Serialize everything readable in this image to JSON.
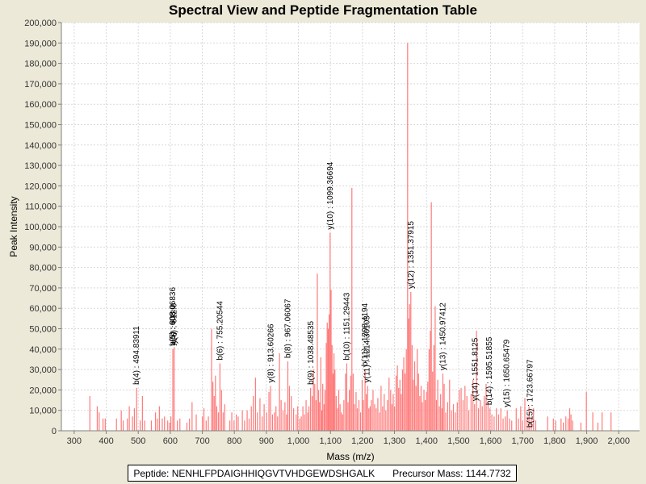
{
  "chart_data": {
    "type": "bar",
    "title": "Spectral View and Peptide Fragmentation Table",
    "xlabel": "Mass (m/z)",
    "ylabel": "Peak Intensity",
    "xlim": [
      260,
      2065
    ],
    "ylim": [
      0,
      200000
    ],
    "x_ticks": [
      300,
      400,
      500,
      600,
      700,
      800,
      900,
      1000,
      1100,
      1200,
      1300,
      1400,
      1500,
      1600,
      1700,
      1800,
      1900,
      2000
    ],
    "x_tick_labels": [
      "300",
      "400",
      "500",
      "600",
      "700",
      "800",
      "900",
      "1,000",
      "1,100",
      "1,200",
      "1,300",
      "1,400",
      "1,500",
      "1,600",
      "1,700",
      "1,800",
      "1,900",
      "2,000"
    ],
    "y_ticks": [
      0,
      10000,
      20000,
      30000,
      40000,
      50000,
      60000,
      70000,
      80000,
      90000,
      100000,
      110000,
      120000,
      130000,
      140000,
      150000,
      160000,
      170000,
      180000,
      190000,
      200000
    ],
    "y_tick_labels": [
      "0",
      "10,000",
      "20,000",
      "30,000",
      "40,000",
      "50,000",
      "60,000",
      "70,000",
      "80,000",
      "90,000",
      "100,000",
      "110,000",
      "120,000",
      "130,000",
      "140,000",
      "150,000",
      "160,000",
      "170,000",
      "180,000",
      "190,000",
      "200,000"
    ],
    "grid": true,
    "bar_color": "#ff7a7a",
    "peaks": [
      [
        349,
        17000
      ],
      [
        372,
        12000
      ],
      [
        378,
        9000
      ],
      [
        390,
        6000
      ],
      [
        397,
        6000
      ],
      [
        432,
        6000
      ],
      [
        447,
        10000
      ],
      [
        453,
        5000
      ],
      [
        466,
        6000
      ],
      [
        472,
        12000
      ],
      [
        482,
        7000
      ],
      [
        488,
        11000
      ],
      [
        495,
        21000
      ],
      [
        506,
        5000
      ],
      [
        513,
        17000
      ],
      [
        520,
        5000
      ],
      [
        541,
        5000
      ],
      [
        554,
        9000
      ],
      [
        560,
        6000
      ],
      [
        566,
        12000
      ],
      [
        575,
        6000
      ],
      [
        582,
        7000
      ],
      [
        592,
        5000
      ],
      [
        598,
        4000
      ],
      [
        602,
        7000
      ],
      [
        608,
        40000
      ],
      [
        612,
        41000
      ],
      [
        622,
        5000
      ],
      [
        630,
        6000
      ],
      [
        652,
        4000
      ],
      [
        660,
        6000
      ],
      [
        668,
        14000
      ],
      [
        681,
        8000
      ],
      [
        700,
        7000
      ],
      [
        705,
        11000
      ],
      [
        712,
        5000
      ],
      [
        719,
        7000
      ],
      [
        729,
        50000
      ],
      [
        733,
        24000
      ],
      [
        737,
        17000
      ],
      [
        741,
        27000
      ],
      [
        745,
        12000
      ],
      [
        750,
        9000
      ],
      [
        755,
        33000
      ],
      [
        760,
        20000
      ],
      [
        765,
        9000
      ],
      [
        770,
        13000
      ],
      [
        786,
        5000
      ],
      [
        792,
        9000
      ],
      [
        799,
        5000
      ],
      [
        806,
        8000
      ],
      [
        812,
        7000
      ],
      [
        825,
        10000
      ],
      [
        832,
        5000
      ],
      [
        840,
        10000
      ],
      [
        846,
        6000
      ],
      [
        853,
        12000
      ],
      [
        859,
        17000
      ],
      [
        866,
        26000
      ],
      [
        872,
        9000
      ],
      [
        880,
        16000
      ],
      [
        887,
        7000
      ],
      [
        893,
        13000
      ],
      [
        901,
        9000
      ],
      [
        908,
        19000
      ],
      [
        913,
        22000
      ],
      [
        919,
        8000
      ],
      [
        925,
        9000
      ],
      [
        930,
        12000
      ],
      [
        935,
        7000
      ],
      [
        941,
        38000
      ],
      [
        946,
        15000
      ],
      [
        952,
        10000
      ],
      [
        958,
        14000
      ],
      [
        963,
        8000
      ],
      [
        967,
        34000
      ],
      [
        972,
        22000
      ],
      [
        978,
        17000
      ],
      [
        985,
        11000
      ],
      [
        993,
        8000
      ],
      [
        998,
        12000
      ],
      [
        1004,
        6000
      ],
      [
        1009,
        7000
      ],
      [
        1014,
        12000
      ],
      [
        1019,
        8000
      ],
      [
        1024,
        15000
      ],
      [
        1029,
        9000
      ],
      [
        1033,
        12000
      ],
      [
        1038,
        21000
      ],
      [
        1043,
        17000
      ],
      [
        1047,
        30000
      ],
      [
        1051,
        23000
      ],
      [
        1055,
        15000
      ],
      [
        1059,
        77000
      ],
      [
        1063,
        20000
      ],
      [
        1066,
        14000
      ],
      [
        1070,
        36000
      ],
      [
        1073,
        10000
      ],
      [
        1076,
        23000
      ],
      [
        1080,
        13000
      ],
      [
        1083,
        20000
      ],
      [
        1087,
        43000
      ],
      [
        1090,
        53000
      ],
      [
        1093,
        50000
      ],
      [
        1096,
        57000
      ],
      [
        1099,
        97000
      ],
      [
        1102,
        69000
      ],
      [
        1105,
        42000
      ],
      [
        1108,
        28000
      ],
      [
        1111,
        38000
      ],
      [
        1114,
        30000
      ],
      [
        1118,
        17000
      ],
      [
        1122,
        11000
      ],
      [
        1126,
        20000
      ],
      [
        1130,
        13000
      ],
      [
        1134,
        9000
      ],
      [
        1138,
        8000
      ],
      [
        1142,
        15000
      ],
      [
        1147,
        28000
      ],
      [
        1151,
        33000
      ],
      [
        1155,
        14000
      ],
      [
        1159,
        20000
      ],
      [
        1163,
        27000
      ],
      [
        1167,
        119000
      ],
      [
        1171,
        28000
      ],
      [
        1175,
        13000
      ],
      [
        1180,
        19000
      ],
      [
        1184,
        11000
      ],
      [
        1189,
        15000
      ],
      [
        1194,
        9000
      ],
      [
        1199,
        25000
      ],
      [
        1203,
        15000
      ],
      [
        1208,
        30000
      ],
      [
        1212,
        18000
      ],
      [
        1216,
        22000
      ],
      [
        1220,
        11000
      ],
      [
        1224,
        12000
      ],
      [
        1228,
        15000
      ],
      [
        1233,
        20000
      ],
      [
        1238,
        13000
      ],
      [
        1243,
        11000
      ],
      [
        1248,
        16000
      ],
      [
        1253,
        9000
      ],
      [
        1258,
        22000
      ],
      [
        1263,
        12000
      ],
      [
        1268,
        18000
      ],
      [
        1273,
        10000
      ],
      [
        1278,
        15000
      ],
      [
        1283,
        26000
      ],
      [
        1288,
        20000
      ],
      [
        1292,
        13000
      ],
      [
        1296,
        18000
      ],
      [
        1300,
        12000
      ],
      [
        1305,
        27000
      ],
      [
        1309,
        32000
      ],
      [
        1313,
        21000
      ],
      [
        1317,
        25000
      ],
      [
        1321,
        18000
      ],
      [
        1325,
        30000
      ],
      [
        1329,
        36000
      ],
      [
        1333,
        28000
      ],
      [
        1337,
        40000
      ],
      [
        1341,
        190000
      ],
      [
        1344,
        55000
      ],
      [
        1347,
        62000
      ],
      [
        1351,
        68000
      ],
      [
        1355,
        42000
      ],
      [
        1359,
        25000
      ],
      [
        1363,
        34000
      ],
      [
        1367,
        22000
      ],
      [
        1371,
        40000
      ],
      [
        1375,
        28000
      ],
      [
        1379,
        17000
      ],
      [
        1383,
        22000
      ],
      [
        1387,
        14000
      ],
      [
        1392,
        20000
      ],
      [
        1396,
        15000
      ],
      [
        1400,
        19000
      ],
      [
        1404,
        24000
      ],
      [
        1408,
        40000
      ],
      [
        1412,
        49000
      ],
      [
        1415,
        112000
      ],
      [
        1419,
        29000
      ],
      [
        1423,
        42000
      ],
      [
        1427,
        61000
      ],
      [
        1431,
        15000
      ],
      [
        1435,
        25000
      ],
      [
        1440,
        12000
      ],
      [
        1444,
        18000
      ],
      [
        1448,
        11000
      ],
      [
        1451,
        28000
      ],
      [
        1455,
        23000
      ],
      [
        1460,
        9000
      ],
      [
        1466,
        14000
      ],
      [
        1472,
        25000
      ],
      [
        1478,
        10000
      ],
      [
        1484,
        13000
      ],
      [
        1490,
        9000
      ],
      [
        1496,
        14000
      ],
      [
        1502,
        20000
      ],
      [
        1508,
        21000
      ],
      [
        1514,
        15000
      ],
      [
        1520,
        22000
      ],
      [
        1526,
        17000
      ],
      [
        1532,
        10000
      ],
      [
        1539,
        18000
      ],
      [
        1545,
        25000
      ],
      [
        1550,
        13000
      ],
      [
        1556,
        49000
      ],
      [
        1562,
        11000
      ],
      [
        1568,
        15000
      ],
      [
        1574,
        12000
      ],
      [
        1580,
        17000
      ],
      [
        1586,
        23000
      ],
      [
        1592,
        14000
      ],
      [
        1598,
        11000
      ],
      [
        1604,
        8000
      ],
      [
        1611,
        7000
      ],
      [
        1618,
        11000
      ],
      [
        1625,
        8000
      ],
      [
        1632,
        11000
      ],
      [
        1639,
        6000
      ],
      [
        1646,
        7000
      ],
      [
        1652,
        10000
      ],
      [
        1659,
        6000
      ],
      [
        1666,
        5000
      ],
      [
        1680,
        11000
      ],
      [
        1687,
        6000
      ],
      [
        1694,
        12000
      ],
      [
        1700,
        5000
      ],
      [
        1707,
        16000
      ],
      [
        1714,
        7000
      ],
      [
        1720,
        12000
      ],
      [
        1727,
        6000
      ],
      [
        1734,
        11000
      ],
      [
        1741,
        5000
      ],
      [
        1778,
        7000
      ],
      [
        1796,
        6000
      ],
      [
        1803,
        5000
      ],
      [
        1820,
        6000
      ],
      [
        1827,
        4000
      ],
      [
        1835,
        7000
      ],
      [
        1842,
        6000
      ],
      [
        1847,
        11000
      ],
      [
        1851,
        8000
      ],
      [
        1856,
        5000
      ],
      [
        1882,
        4000
      ],
      [
        1899,
        19000
      ],
      [
        1919,
        9000
      ],
      [
        1935,
        4000
      ],
      [
        1948,
        9000
      ],
      [
        1976,
        9000
      ]
    ],
    "annotations": [
      {
        "mz": 494.83911,
        "label": "b(4) : 494.83911"
      },
      {
        "mz": 608.0,
        "label": "b(5) : 608.0"
      },
      {
        "mz": 608.06836,
        "label": "y(5) : 608.06836"
      },
      {
        "mz": 612.0,
        "label": "y(6) : 612.0"
      },
      {
        "mz": 755.20544,
        "label": "b(6) : 755.20544"
      },
      {
        "mz": 913.60266,
        "label": "y(8) : 913.60266"
      },
      {
        "mz": 967.06067,
        "label": "b(8) : 967.06067"
      },
      {
        "mz": 1038.48535,
        "label": "b(9) : 1038.48535"
      },
      {
        "mz": 1099.36694,
        "label": "y(10) : 1099.36694"
      },
      {
        "mz": 1151.29443,
        "label": "b(10) : 1151.29443"
      },
      {
        "mz": 1208.4194,
        "label": "b(11) : 1208.4194"
      },
      {
        "mz": 1214.30103,
        "label": "y(11) : 1214.30103"
      },
      {
        "mz": 1351.37915,
        "label": "y(12) : 1351.37915"
      },
      {
        "mz": 1450.97412,
        "label": "y(13) : 1450.97412"
      },
      {
        "mz": 1551.8125,
        "label": "y(14) : 1551.8125"
      },
      {
        "mz": 1595.51855,
        "label": "b(14) : 1595.51855"
      },
      {
        "mz": 1650.65479,
        "label": "y(15) : 1650.65479"
      },
      {
        "mz": 1723.66797,
        "label": "b(15) : 1723.66797"
      }
    ]
  },
  "footer": {
    "peptide_label": "Peptide: NENHLFPDAIGHHIQGVTVHDGEWDSHGALK",
    "precursor_label": "Precursor Mass: 1144.7732"
  }
}
